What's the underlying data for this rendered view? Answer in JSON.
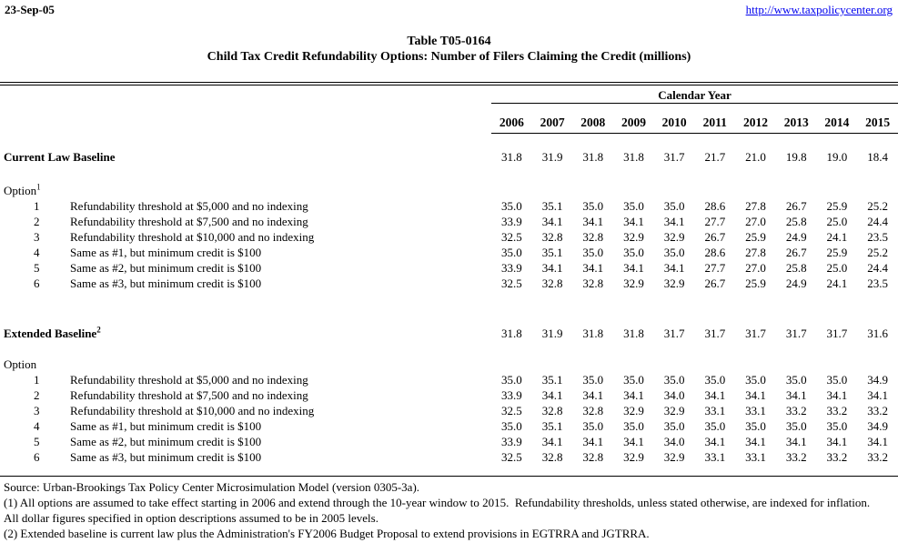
{
  "header": {
    "date": "23-Sep-05",
    "url": "http://www.taxpolicycenter.org"
  },
  "title": {
    "line1": "Table T05-0164",
    "line2": "Child Tax Credit Refundability Options: Number of Filers Claiming the Credit (millions)"
  },
  "table": {
    "calendar_year_label": "Calendar Year",
    "years": [
      "2006",
      "2007",
      "2008",
      "2009",
      "2010",
      "2011",
      "2012",
      "2013",
      "2014",
      "2015"
    ],
    "sections": [
      {
        "label": "Current Law Baseline",
        "label_sup": "",
        "values": [
          "31.8",
          "31.9",
          "31.8",
          "31.8",
          "31.7",
          "21.7",
          "21.0",
          "19.8",
          "19.0",
          "18.4"
        ],
        "option_label": "Option",
        "option_sup": "1",
        "options": [
          {
            "num": "1",
            "desc": "Refundability threshold at $5,000 and no indexing",
            "values": [
              "35.0",
              "35.1",
              "35.0",
              "35.0",
              "35.0",
              "28.6",
              "27.8",
              "26.7",
              "25.9",
              "25.2"
            ]
          },
          {
            "num": "2",
            "desc": "Refundability threshold at $7,500 and no indexing",
            "values": [
              "33.9",
              "34.1",
              "34.1",
              "34.1",
              "34.1",
              "27.7",
              "27.0",
              "25.8",
              "25.0",
              "24.4"
            ]
          },
          {
            "num": "3",
            "desc": "Refundability threshold at $10,000 and no indexing",
            "values": [
              "32.5",
              "32.8",
              "32.8",
              "32.9",
              "32.9",
              "26.7",
              "25.9",
              "24.9",
              "24.1",
              "23.5"
            ]
          },
          {
            "num": "4",
            "desc": "Same as #1, but minimum credit is $100",
            "values": [
              "35.0",
              "35.1",
              "35.0",
              "35.0",
              "35.0",
              "28.6",
              "27.8",
              "26.7",
              "25.9",
              "25.2"
            ]
          },
          {
            "num": "5",
            "desc": "Same as #2, but minimum credit is $100",
            "values": [
              "33.9",
              "34.1",
              "34.1",
              "34.1",
              "34.1",
              "27.7",
              "27.0",
              "25.8",
              "25.0",
              "24.4"
            ]
          },
          {
            "num": "6",
            "desc": "Same as #3, but minimum credit is $100",
            "values": [
              "32.5",
              "32.8",
              "32.8",
              "32.9",
              "32.9",
              "26.7",
              "25.9",
              "24.9",
              "24.1",
              "23.5"
            ]
          }
        ]
      },
      {
        "label": "Extended Baseline",
        "label_sup": "2",
        "values": [
          "31.8",
          "31.9",
          "31.8",
          "31.8",
          "31.7",
          "31.7",
          "31.7",
          "31.7",
          "31.7",
          "31.6"
        ],
        "option_label": "Option",
        "option_sup": "",
        "options": [
          {
            "num": "1",
            "desc": "Refundability threshold at $5,000 and no indexing",
            "values": [
              "35.0",
              "35.1",
              "35.0",
              "35.0",
              "35.0",
              "35.0",
              "35.0",
              "35.0",
              "35.0",
              "34.9"
            ]
          },
          {
            "num": "2",
            "desc": "Refundability threshold at $7,500 and no indexing",
            "values": [
              "33.9",
              "34.1",
              "34.1",
              "34.1",
              "34.0",
              "34.1",
              "34.1",
              "34.1",
              "34.1",
              "34.1"
            ]
          },
          {
            "num": "3",
            "desc": "Refundability threshold at $10,000 and no indexing",
            "values": [
              "32.5",
              "32.8",
              "32.8",
              "32.9",
              "32.9",
              "33.1",
              "33.1",
              "33.2",
              "33.2",
              "33.2"
            ]
          },
          {
            "num": "4",
            "desc": "Same as #1, but minimum credit is $100",
            "values": [
              "35.0",
              "35.1",
              "35.0",
              "35.0",
              "35.0",
              "35.0",
              "35.0",
              "35.0",
              "35.0",
              "34.9"
            ]
          },
          {
            "num": "5",
            "desc": "Same as #2, but minimum credit is $100",
            "values": [
              "33.9",
              "34.1",
              "34.1",
              "34.1",
              "34.0",
              "34.1",
              "34.1",
              "34.1",
              "34.1",
              "34.1"
            ]
          },
          {
            "num": "6",
            "desc": "Same as #3, but minimum credit is $100",
            "values": [
              "32.5",
              "32.8",
              "32.8",
              "32.9",
              "32.9",
              "33.1",
              "33.1",
              "33.2",
              "33.2",
              "33.2"
            ]
          }
        ]
      }
    ]
  },
  "footer": {
    "lines": [
      "Source: Urban-Brookings Tax Policy Center Microsimulation Model (version 0305-3a).",
      "(1) All options are assumed to take effect starting in 2006 and extend through the 10-year window to 2015.  Refundability thresholds, unless stated otherwise, are indexed for inflation.",
      "All dollar figures specified in option descriptions assumed to be in 2005 levels.",
      "(2) Extended baseline is current law plus the Administration's FY2006 Budget Proposal to extend provisions in EGTRRA and JGTRRA."
    ]
  }
}
